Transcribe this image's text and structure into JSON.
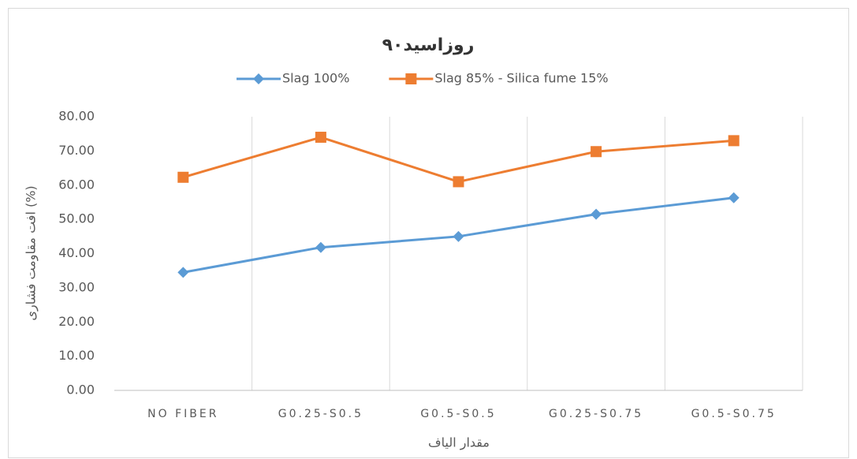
{
  "chart_data": {
    "type": "line",
    "title": "۹۰روزاسید",
    "x_label": "مقدار الیاف",
    "y_label": "افت مقاومت فشاری (%)",
    "categories": [
      "NO FIBER",
      "G0.25-S0.5",
      "G0.5-S0.5",
      "G0.25-S0.75",
      "G0.5-S0.75"
    ],
    "series": [
      {
        "name": "Slag 100%",
        "color": "#5b9bd5",
        "marker": "diamond",
        "values": [
          34.5,
          41.8,
          45.0,
          51.5,
          56.3
        ]
      },
      {
        "name": "Slag 85% - Silica fume 15%",
        "color": "#ed7d31",
        "marker": "square",
        "values": [
          62.3,
          74.0,
          61.0,
          69.8,
          73.0
        ]
      }
    ],
    "ylim": [
      0,
      80
    ],
    "yticks": [
      {
        "value": 0,
        "label": "0.00"
      },
      {
        "value": 10,
        "label": "10.00"
      },
      {
        "value": 20,
        "label": "20.00"
      },
      {
        "value": 30,
        "label": "30.00"
      },
      {
        "value": 40,
        "label": "40.00"
      },
      {
        "value": 50,
        "label": "50.00"
      },
      {
        "value": 60,
        "label": "60.00"
      },
      {
        "value": 70,
        "label": "70.00"
      },
      {
        "value": 80,
        "label": "80.00"
      }
    ],
    "grid": "vertical-category-boundaries",
    "legend": "top"
  }
}
